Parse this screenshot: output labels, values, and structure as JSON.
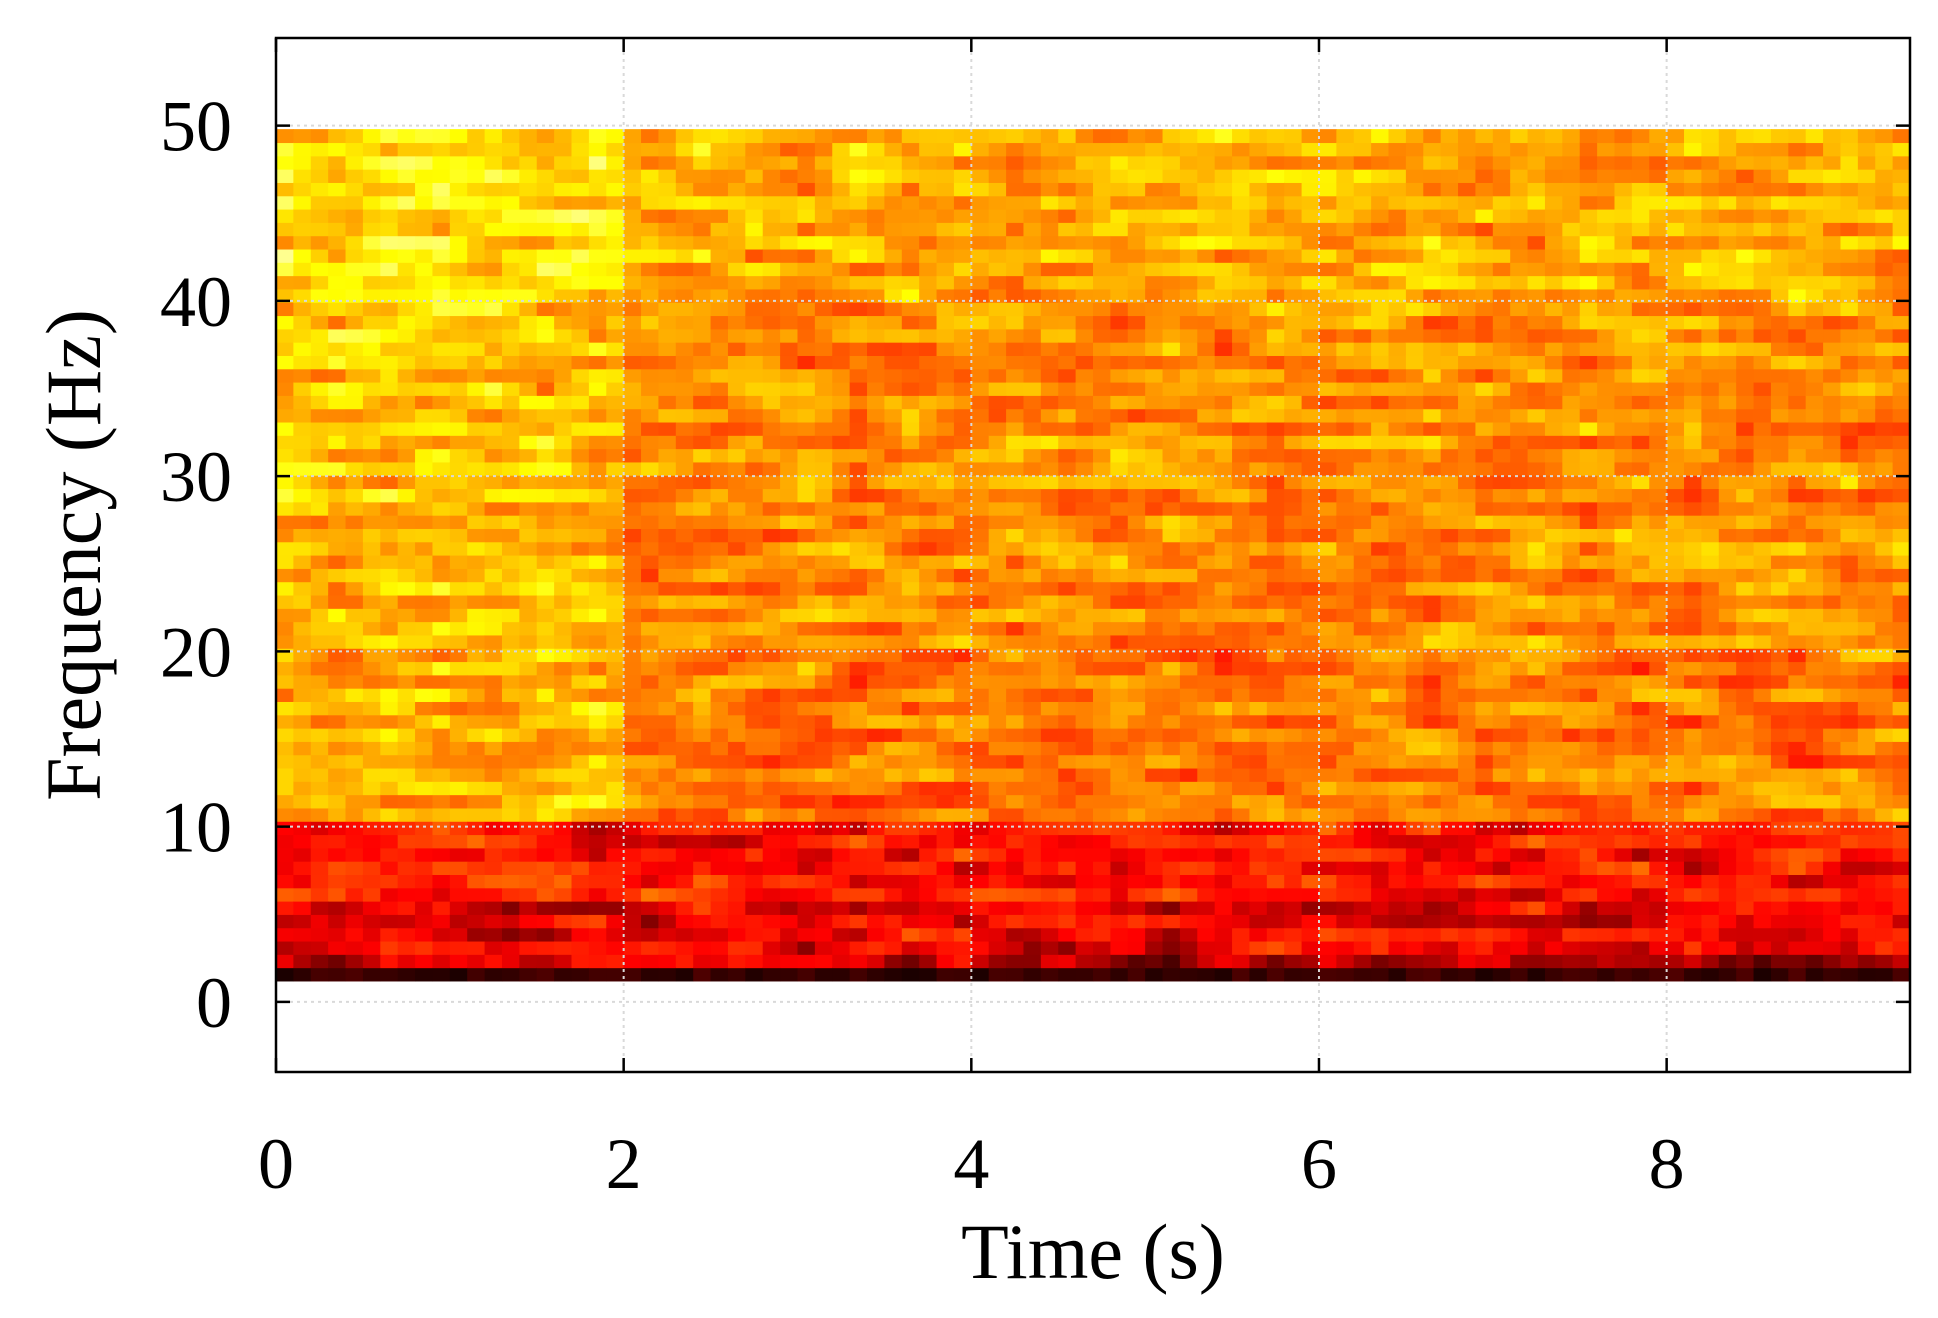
{
  "chart_data": {
    "type": "heatmap",
    "title": "",
    "xlabel": "Time (s)",
    "ylabel": "Frequency (Hz)",
    "xlim": [
      0,
      9.4
    ],
    "ylim": [
      -4,
      55
    ],
    "x_ticks": [
      0,
      2,
      4,
      6,
      8
    ],
    "y_ticks": [
      0,
      10,
      20,
      30,
      40,
      50
    ],
    "x_tick_labels": [
      "0",
      "2",
      "4",
      "6",
      "8"
    ],
    "y_tick_labels": [
      "0",
      "10",
      "20",
      "30",
      "40",
      "50"
    ],
    "grid": true,
    "legend": "none",
    "colormap": "hot",
    "colormap_stops": [
      "#000000",
      "#8b0000",
      "#ff0000",
      "#ff6a00",
      "#ffb000",
      "#ffff00",
      "#ffffcc"
    ],
    "x_range": [
      0,
      9.4
    ],
    "freq_range": [
      1.2,
      49.8
    ],
    "n_time_bins": 94,
    "n_freq_bins": 64,
    "band_profile": [
      {
        "freq_min": 1.2,
        "freq_max": 2.2,
        "level": 0.08
      },
      {
        "freq_min": 2.2,
        "freq_max": 3.0,
        "level": 0.28
      },
      {
        "freq_min": 3.0,
        "freq_max": 6.0,
        "level": 0.36
      },
      {
        "freq_min": 6.0,
        "freq_max": 10.0,
        "level": 0.42
      },
      {
        "freq_min": 10.0,
        "freq_max": 20.0,
        "level": 0.6
      },
      {
        "freq_min": 20.0,
        "freq_max": 40.0,
        "level": 0.64
      },
      {
        "freq_min": 40.0,
        "freq_max": 49.8,
        "level": 0.7
      }
    ]
  }
}
